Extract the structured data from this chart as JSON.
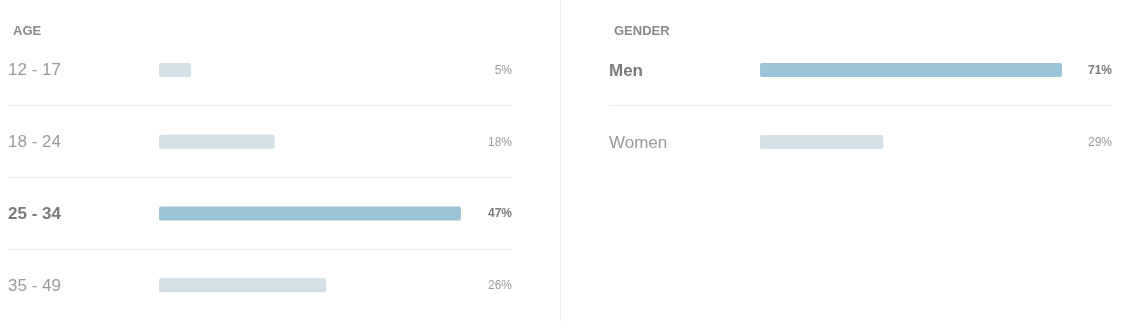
{
  "chart_data": [
    {
      "type": "bar",
      "orientation": "horizontal",
      "title": "AGE",
      "categories": [
        "12 - 17",
        "18 - 24",
        "25 - 34",
        "35 - 49"
      ],
      "values": [
        5,
        18,
        47,
        26
      ],
      "value_labels": [
        "5%",
        "18%",
        "47%",
        "26%"
      ],
      "colors": [
        "#d3e0e7",
        "#d3e0e7",
        "#9cc4d7",
        "#d3e0e7"
      ]
    },
    {
      "type": "bar",
      "orientation": "horizontal",
      "title": "GENDER",
      "categories": [
        "Men",
        "Women"
      ],
      "values": [
        71,
        29
      ],
      "value_labels": [
        "71%",
        "29%"
      ],
      "colors": [
        "#9cc4d7",
        "#d3e0e7"
      ]
    }
  ]
}
